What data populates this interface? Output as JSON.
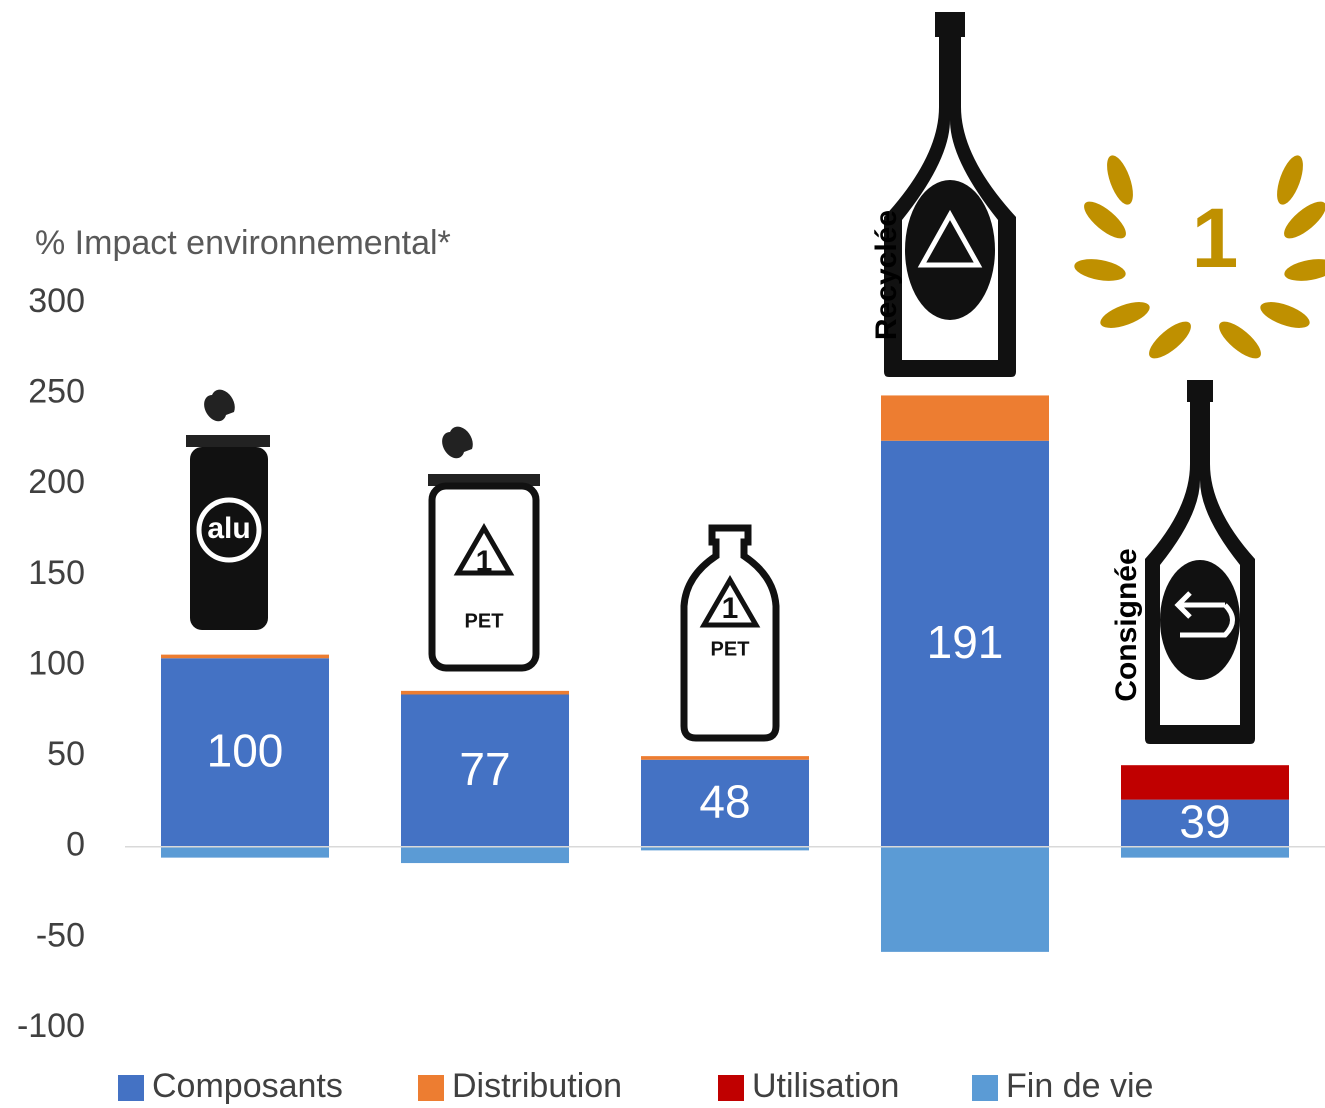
{
  "chart_data": {
    "type": "stacked_bar",
    "y_label": "% Impact environnemental*",
    "categories": [
      null,
      null,
      null,
      null,
      null
    ],
    "series": [
      {
        "name": "Composants",
        "color": "#4472c4",
        "values": [
          104,
          84,
          48,
          224,
          26
        ]
      },
      {
        "name": "Distribution",
        "color": "#ed7d31",
        "values": [
          2,
          2,
          2,
          25,
          0
        ]
      },
      {
        "name": "Utilisation",
        "color": "#c00000",
        "values": [
          0,
          0,
          0,
          0,
          19
        ]
      },
      {
        "name": "Fin de vie",
        "color": "#5b9bd5",
        "values": [
          -6,
          -9,
          -2,
          -58,
          -6
        ]
      }
    ],
    "totals": [
      100,
      77,
      48,
      191,
      39
    ],
    "ylim": [
      -100,
      300
    ],
    "yticks": [
      -100,
      -50,
      0,
      50,
      100,
      150,
      200,
      250,
      300
    ],
    "annotations": [
      "alu",
      "1",
      "PET",
      "1",
      "PET",
      "Recyclée",
      "Consignée",
      "1"
    ],
    "legend": "bottom"
  }
}
